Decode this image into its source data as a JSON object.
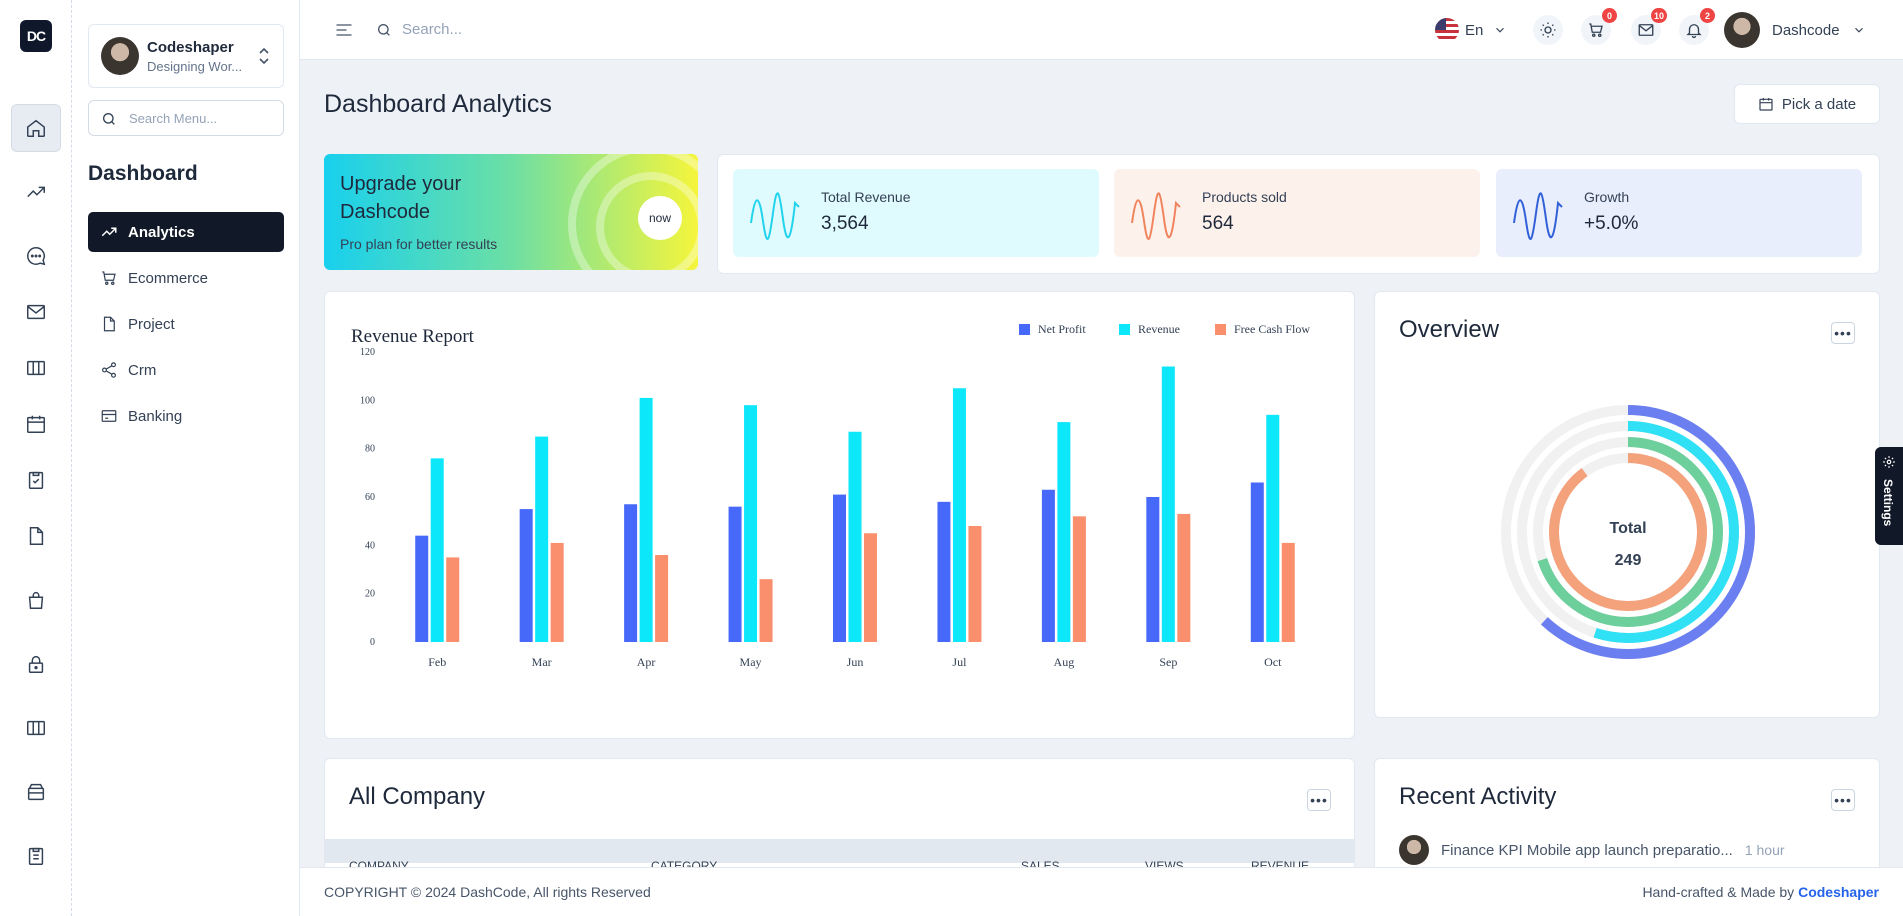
{
  "brand": {
    "logo": "DC"
  },
  "profile": {
    "name": "Codeshaper",
    "subtitle": "Designing Wor..."
  },
  "menu_search": {
    "placeholder": "Search Menu..."
  },
  "sidebar": {
    "title": "Dashboard",
    "items": [
      {
        "label": "Analytics",
        "icon": "trending-up-icon"
      },
      {
        "label": "Ecommerce",
        "icon": "cart-icon"
      },
      {
        "label": "Project",
        "icon": "file-icon"
      },
      {
        "label": "Crm",
        "icon": "share-icon"
      },
      {
        "label": "Banking",
        "icon": "credit-card-icon"
      }
    ]
  },
  "rail": [
    "home-icon",
    "trending-up-icon",
    "chat-icon",
    "mail-icon",
    "columns-icon",
    "calendar-icon",
    "clipboard-check-icon",
    "file-icon",
    "bag-icon",
    "lock-icon",
    "columns-icon",
    "archive-icon",
    "clipboard-list-icon"
  ],
  "topbar": {
    "search_placeholder": "Search...",
    "language": "En",
    "cart_count": "0",
    "mail_count": "10",
    "notification_count": "2",
    "user_name": "Dashcode"
  },
  "page": {
    "title": "Dashboard Analytics",
    "date_button": "Pick a date"
  },
  "upgrade": {
    "title": "Upgrade your Dashcode",
    "subtitle": "Pro plan for better results",
    "button": "now"
  },
  "stats": [
    {
      "label": "Total Revenue",
      "value": "3,564",
      "color": "#22d3ee",
      "bg": "#e0fbfd"
    },
    {
      "label": "Products sold",
      "value": "564",
      "color": "#f0845e",
      "bg": "#fdf1ec"
    },
    {
      "label": "Growth",
      "value": "+5.0%",
      "color": "#3160d8",
      "bg": "#e8eefb"
    }
  ],
  "revenue_report": {
    "title": "Revenue Report"
  },
  "chart_data": {
    "type": "bar",
    "title": "Revenue Report",
    "categories": [
      "Feb",
      "Mar",
      "Apr",
      "May",
      "Jun",
      "Jul",
      "Aug",
      "Sep",
      "Oct"
    ],
    "series": [
      {
        "name": "Net Profit",
        "color": "#4669fa",
        "values": [
          44,
          55,
          57,
          56,
          61,
          58,
          63,
          60,
          66
        ]
      },
      {
        "name": "Revenue",
        "color": "#0ce7fa",
        "values": [
          76,
          85,
          101,
          98,
          87,
          105,
          91,
          114,
          94
        ]
      },
      {
        "name": "Free Cash Flow",
        "color": "#f98f6c",
        "values": [
          35,
          41,
          36,
          26,
          45,
          48,
          52,
          53,
          41
        ]
      }
    ],
    "ylim": [
      0,
      120
    ],
    "yticks": [
      0,
      20,
      40,
      60,
      80,
      100,
      120
    ],
    "legend": "top-right",
    "grid": false
  },
  "overview": {
    "title": "Overview",
    "total_label": "Total",
    "total_value": "249",
    "rings": [
      {
        "color": "#6b7ff0",
        "fraction": 0.62
      },
      {
        "color": "#30e0f5",
        "fraction": 0.55
      },
      {
        "color": "#6dcf9c",
        "fraction": 0.7
      },
      {
        "color": "#f4a27c",
        "fraction": 0.9
      }
    ]
  },
  "all_company": {
    "title": "All Company",
    "columns": [
      "COMPANY",
      "CATEGORY",
      "SALES",
      "VIEWS",
      "REVENUE"
    ]
  },
  "recent_activity": {
    "title": "Recent Activity",
    "items": [
      {
        "text": "Finance KPI Mobile app launch preparatio...",
        "time": "1 hour"
      }
    ]
  },
  "footer": {
    "copyright": "COPYRIGHT © 2024 DashCode, All rights Reserved",
    "credit_prefix": "Hand-crafted & Made by",
    "credit_name": "Codeshaper"
  },
  "settings_tab": {
    "label": "Settings"
  }
}
